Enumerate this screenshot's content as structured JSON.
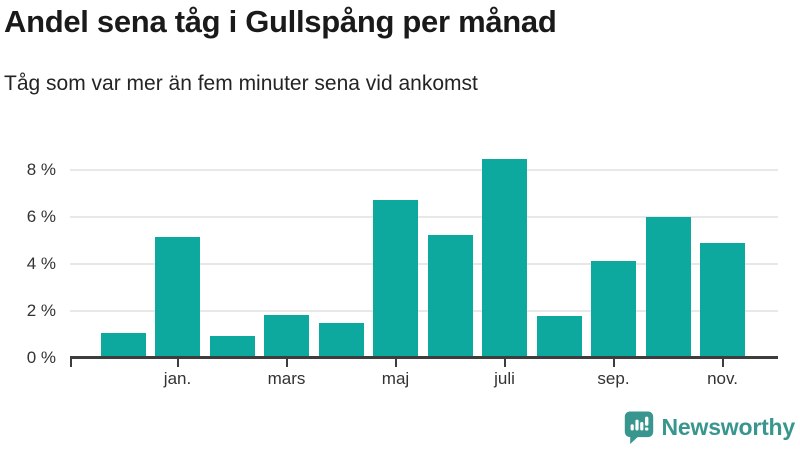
{
  "header": {
    "title": "Andel sena tåg i Gullspång per månad",
    "subtitle": "Tåg som var mer än fem minuter sena vid ankomst"
  },
  "chart_data": {
    "type": "bar",
    "title": "Andel sena tåg i Gullspång per månad",
    "subtitle": "Tåg som var mer än fem minuter sena vid ankomst",
    "unit": "%",
    "values": [
      1.05,
      5.15,
      0.95,
      1.85,
      1.5,
      6.75,
      5.25,
      8.5,
      1.8,
      4.15,
      6.0,
      4.9
    ],
    "x_tick_labels": [
      "jan.",
      "mars",
      "maj",
      "juli",
      "sep.",
      "nov."
    ],
    "x_tick_bar_indices": [
      1,
      3,
      5,
      7,
      9,
      11
    ],
    "y_tick_labels": [
      "0 %",
      "2 %",
      "4 %",
      "6 %",
      "8 %"
    ],
    "y_tick_values": [
      0,
      2,
      4,
      6,
      8
    ],
    "y_gridline_values": [
      2,
      4,
      6,
      8
    ],
    "ylim": [
      0,
      9
    ],
    "grid": true,
    "legend": false,
    "bar_color": "#0da89e"
  },
  "footer": {
    "brand": "Newsworthy"
  },
  "colors": {
    "bar_teal": "#0da89e",
    "logo_teal": "#38968e",
    "title_text": "#1a1a1a",
    "axis_text": "#333333",
    "gridline": "#e8e8e8",
    "axis_line": "#3d3d3d"
  }
}
